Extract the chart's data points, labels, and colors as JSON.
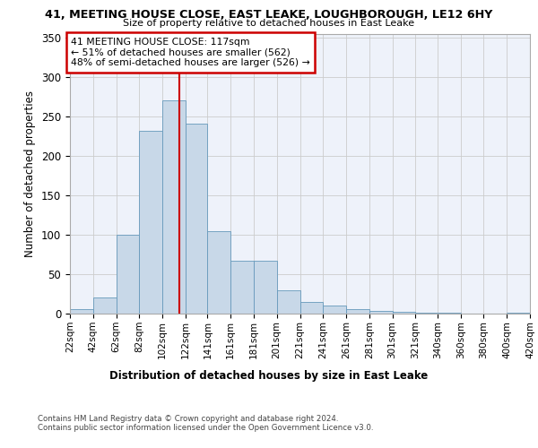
{
  "title": "41, MEETING HOUSE CLOSE, EAST LEAKE, LOUGHBOROUGH, LE12 6HY",
  "subtitle": "Size of property relative to detached houses in East Leake",
  "xlabel": "Distribution of detached houses by size in East Leake",
  "ylabel": "Number of detached properties",
  "property_size": 117,
  "annotation_line1": "41 MEETING HOUSE CLOSE: 117sqm",
  "annotation_line2": "← 51% of detached houses are smaller (562)",
  "annotation_line3": "48% of semi-detached houses are larger (526) →",
  "bin_edges": [
    22,
    42,
    62,
    82,
    102,
    122,
    141,
    161,
    181,
    201,
    221,
    241,
    261,
    281,
    301,
    321,
    340,
    360,
    380,
    400,
    420
  ],
  "bar_heights": [
    6,
    20,
    100,
    232,
    270,
    241,
    105,
    67,
    67,
    30,
    15,
    10,
    6,
    3,
    2,
    1,
    1,
    0,
    0,
    1
  ],
  "bar_color": "#c8d8e8",
  "bar_edge_color": "#6699bb",
  "grid_color": "#cccccc",
  "vline_color": "#cc0000",
  "vline_x": 117,
  "annotation_box_color": "#cc0000",
  "background_color": "#eef2fa",
  "footer_line1": "Contains HM Land Registry data © Crown copyright and database right 2024.",
  "footer_line2": "Contains public sector information licensed under the Open Government Licence v3.0.",
  "ylim": [
    0,
    355
  ],
  "yticks": [
    0,
    50,
    100,
    150,
    200,
    250,
    300,
    350
  ]
}
